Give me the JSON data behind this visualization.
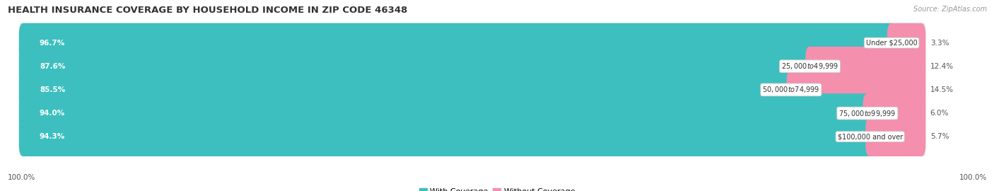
{
  "title": "HEALTH INSURANCE COVERAGE BY HOUSEHOLD INCOME IN ZIP CODE 46348",
  "source": "Source: ZipAtlas.com",
  "categories": [
    "Under $25,000",
    "$25,000 to $49,999",
    "$50,000 to $74,999",
    "$75,000 to $99,999",
    "$100,000 and over"
  ],
  "with_coverage": [
    96.7,
    87.6,
    85.5,
    94.0,
    94.3
  ],
  "without_coverage": [
    3.3,
    12.4,
    14.5,
    6.0,
    5.7
  ],
  "color_with": "#3DBFBF",
  "color_without": "#F48FAE",
  "row_bg_color": "#F0F0F0",
  "title_fontsize": 9.5,
  "label_fontsize": 7.5,
  "cat_fontsize": 7.0,
  "tick_fontsize": 7.5,
  "legend_fontsize": 8.0,
  "source_fontsize": 7.0,
  "bar_height": 0.68,
  "background_color": "#FFFFFF",
  "left_label_pct": [
    "96.7%",
    "87.6%",
    "85.5%",
    "94.0%",
    "94.3%"
  ],
  "right_label_pct": [
    "3.3%",
    "12.4%",
    "14.5%",
    "6.0%",
    "5.7%"
  ],
  "bottom_left_label": "100.0%",
  "bottom_right_label": "100.0%",
  "total_bar_width": 100.0,
  "xlim_left": -1.5,
  "xlim_right": 107.0
}
